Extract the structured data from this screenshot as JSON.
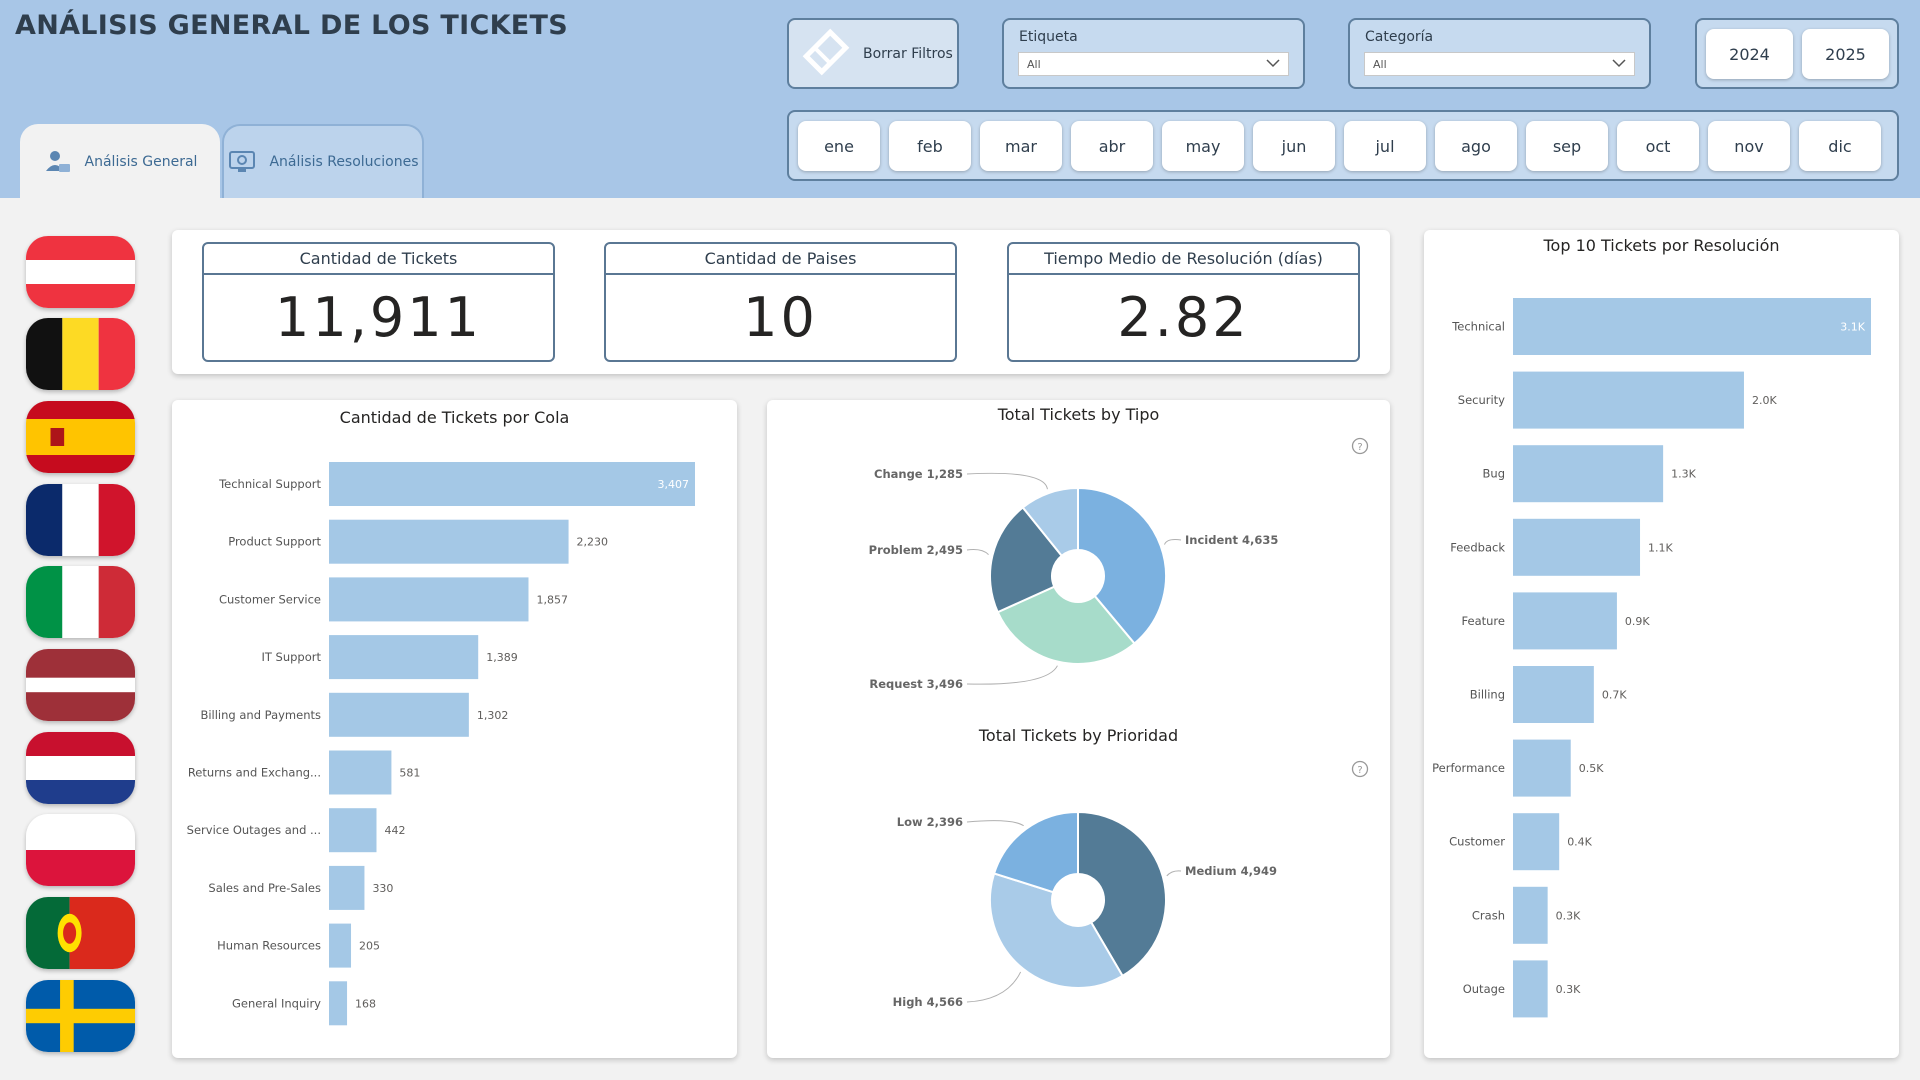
{
  "page_title": "ANÁLISIS GENERAL DE LOS TICKETS",
  "tabs": [
    {
      "label": "Análisis General",
      "active": true
    },
    {
      "label": "Análisis Resoluciones",
      "active": false
    }
  ],
  "clear_filters": {
    "label": "Borrar Filtros"
  },
  "slicers": {
    "etiqueta": {
      "title": "Etiqueta",
      "value": "All"
    },
    "categoria": {
      "title": "Categoría",
      "value": "All"
    }
  },
  "years": [
    "2024",
    "2025"
  ],
  "months": [
    "ene",
    "feb",
    "mar",
    "abr",
    "may",
    "jun",
    "jul",
    "ago",
    "sep",
    "oct",
    "nov",
    "dic"
  ],
  "flags": [
    "austria",
    "belgium",
    "spain",
    "france",
    "italy",
    "latvia",
    "netherlands",
    "poland",
    "portugal",
    "sweden"
  ],
  "kpis": [
    {
      "title": "Cantidad de Tickets",
      "value": "11,911"
    },
    {
      "title": "Cantidad de Paises",
      "value": "10"
    },
    {
      "title": "Tiempo Medio de Resolución (días)",
      "value": "2.82"
    }
  ],
  "colors": {
    "bar": "#a4c8e6",
    "header": "#a8c6e7",
    "pie_blue": "#7bb1e0",
    "pie_dark": "#537b96",
    "pie_light": "#a9cbe8",
    "pie_green": "#a7dcca"
  },
  "chart_data": [
    {
      "type": "bar",
      "orientation": "horizontal",
      "title": "Cantidad de Tickets por Cola",
      "categories": [
        "Technical Support",
        "Product Support",
        "Customer Service",
        "IT Support",
        "Billing and Payments",
        "Returns and Exchang...",
        "Service Outages and ...",
        "Sales and Pre-Sales",
        "Human Resources",
        "General Inquiry"
      ],
      "values": [
        3407,
        2230,
        1857,
        1389,
        1302,
        581,
        442,
        330,
        205,
        168
      ],
      "labels": [
        "3,407",
        "2,230",
        "1,857",
        "1,389",
        "1,302",
        "581",
        "442",
        "330",
        "205",
        "168"
      ]
    },
    {
      "type": "pie",
      "donut": true,
      "title": "Total Tickets by Tipo",
      "categories": [
        "Incident",
        "Request",
        "Problem",
        "Change"
      ],
      "values": [
        4635,
        3496,
        2495,
        1285
      ],
      "labels": [
        "Incident 4,635",
        "Request 3,496",
        "Problem 2,495",
        "Change 1,285"
      ]
    },
    {
      "type": "pie",
      "donut": true,
      "title": "Total Tickets by Prioridad",
      "categories": [
        "Medium",
        "High",
        "Low"
      ],
      "values": [
        4949,
        4566,
        2396
      ],
      "labels": [
        "Medium 4,949",
        "High 4,566",
        "Low 2,396"
      ]
    },
    {
      "type": "bar",
      "orientation": "horizontal",
      "title": "Top 10 Tickets por Resolución",
      "categories": [
        "Technical",
        "Security",
        "Bug",
        "Feedback",
        "Feature",
        "Billing",
        "Performance",
        "Customer",
        "Crash",
        "Outage"
      ],
      "values": [
        3100,
        2000,
        1300,
        1100,
        900,
        700,
        500,
        400,
        300,
        300
      ],
      "labels": [
        "3.1K",
        "2.0K",
        "1.3K",
        "1.1K",
        "0.9K",
        "0.7K",
        "0.5K",
        "0.4K",
        "0.3K",
        "0.3K"
      ]
    }
  ]
}
